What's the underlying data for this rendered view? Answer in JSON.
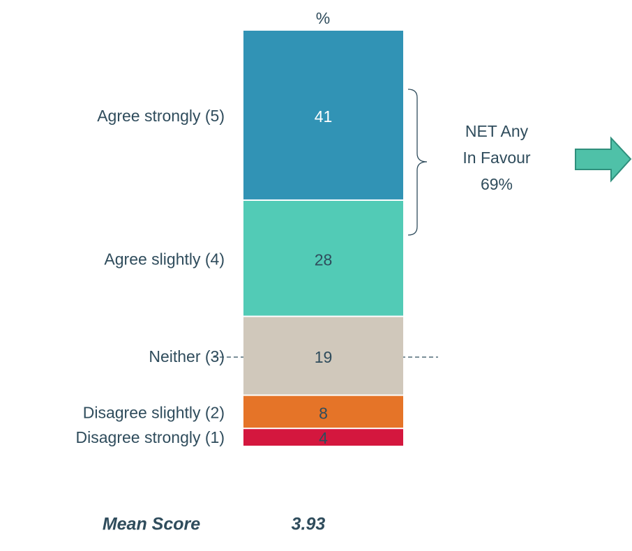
{
  "chart_data": {
    "type": "stacked_bar",
    "header": "%",
    "series": [
      {
        "name": "Agree strongly (5)",
        "color": "#3193b5",
        "values": [
          41
        ]
      },
      {
        "name": "Agree slightly (4)",
        "color": "#52cbb6",
        "values": [
          28
        ]
      },
      {
        "name": "Neither (3)",
        "color": "#d0c8bb",
        "values": [
          19
        ]
      },
      {
        "name": "Disagree slightly (2)",
        "color": "#e57428",
        "values": [
          8
        ]
      },
      {
        "name": "Disagree strongly (1)",
        "color": "#d4173e",
        "values": [
          4
        ]
      }
    ],
    "annotation": [
      "NET Any",
      "In Favour",
      "69%"
    ],
    "mean_label": "Mean Score",
    "mean_value": 3.93
  }
}
